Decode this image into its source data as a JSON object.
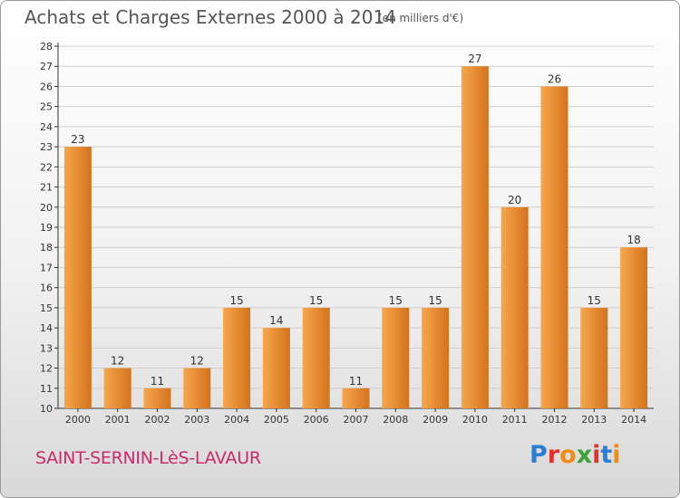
{
  "header": {
    "title": "Achats et Charges Externes 2000 à 2014",
    "subtitle": "(en milliers d'€)"
  },
  "footer": {
    "commune": "SAINT-SERNIN-LèS-LAVAUR",
    "logo_letters": [
      "P",
      "r",
      "o",
      "x",
      "i",
      "t",
      "i"
    ],
    "logo_colors": [
      "#2a7fd4",
      "#e2322c",
      "#f08c12",
      "#3aa33a",
      "#e2322c",
      "#2a7fd4",
      "#f08c12"
    ]
  },
  "colors": {
    "bar_light": "#f7a64c",
    "bar_dark": "#d4731c",
    "grid": "#cfcfcf",
    "axis": "#333333",
    "text": "#333333"
  },
  "chart_data": {
    "type": "bar",
    "title": "Achats et Charges Externes 2000 à 2014",
    "subtitle": "(en milliers d'€)",
    "categories": [
      "2000",
      "2001",
      "2002",
      "2003",
      "2004",
      "2005",
      "2006",
      "2007",
      "2008",
      "2009",
      "2010",
      "2011",
      "2012",
      "2013",
      "2014"
    ],
    "values": [
      23,
      12,
      11,
      12,
      15,
      14,
      15,
      11,
      15,
      15,
      27,
      20,
      26,
      15,
      18
    ],
    "ylim": [
      10,
      28
    ],
    "yticks": [
      10,
      11,
      12,
      13,
      14,
      15,
      16,
      17,
      18,
      19,
      20,
      21,
      22,
      23,
      24,
      25,
      26,
      27,
      28
    ],
    "grid": true,
    "xlabel": "",
    "ylabel": ""
  }
}
